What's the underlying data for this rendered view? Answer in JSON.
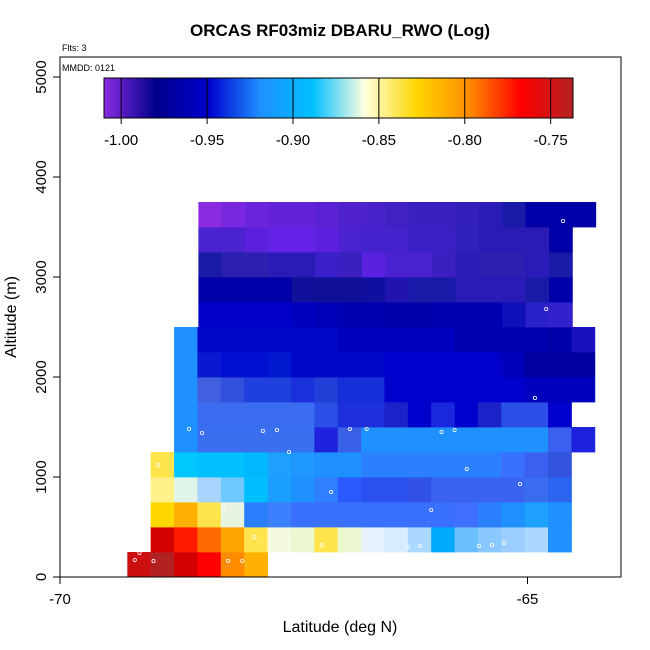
{
  "chart_data": {
    "type": "heatmap",
    "title": "ORCAS RF03miz DBARU_RWO (Log)",
    "flights_label": "Flts: 3",
    "date_label": "MMDD: 0121",
    "xlabel": "Latitude (deg N)",
    "ylabel": "Altitude (m)",
    "xlim": [
      -70,
      -64
    ],
    "ylim": [
      0,
      5200
    ],
    "x_ticks": [
      {
        "value": -70,
        "label": "-70"
      },
      {
        "value": -65,
        "label": "-65"
      }
    ],
    "y_ticks": [
      {
        "value": 0,
        "label": "0"
      },
      {
        "value": 1000,
        "label": "1000"
      },
      {
        "value": 2000,
        "label": "2000"
      },
      {
        "value": 3000,
        "label": "3000"
      },
      {
        "value": 4000,
        "label": "4000"
      },
      {
        "value": 5000,
        "label": "5000"
      }
    ],
    "colorbar": {
      "min": -1.01,
      "max": -0.737,
      "stops": [
        "#8a2be2",
        "#00008b",
        "#0000cd",
        "#1e90ff",
        "#00bfff",
        "#ffffe0",
        "#ffd700",
        "#ff8c00",
        "#ff0000",
        "#b22222"
      ],
      "ticks": [
        {
          "value": -1.0,
          "label": "-1.00"
        },
        {
          "value": -0.95,
          "label": "-0.95"
        },
        {
          "value": -0.9,
          "label": "-0.90"
        },
        {
          "value": -0.85,
          "label": "-0.85"
        },
        {
          "value": -0.8,
          "label": "-0.80"
        },
        {
          "value": -0.75,
          "label": "-0.75"
        }
      ]
    },
    "cell_width_deg": 0.25,
    "cell_height_m": 250,
    "rows": [
      {
        "alt": 0,
        "lat0": -69.28,
        "colors": [
          "#cc1010",
          "#b22222",
          "#d40000",
          "#ff0000",
          "#ff8c00",
          "#ffb000"
        ]
      },
      {
        "alt": 250,
        "lat0": -69.03,
        "colors": [
          "#d40000",
          "#ff1a00",
          "#ff6a00",
          "#ffa500",
          "#ffe44d",
          "#f4fae0",
          "#ecf8d0",
          "#ffe44d",
          "#ecf8d0",
          "#e6f2ff",
          "#d6ecff",
          "#aad8ff",
          "#00aaff",
          "#6cbfff",
          "#8ac8ff",
          "#9ccfff",
          "#aad8ff",
          "#1e90ff"
        ]
      },
      {
        "alt": 500,
        "lat0": -69.03,
        "colors": [
          "#ffd700",
          "#ffb000",
          "#ffe44d",
          "#e8f4e0",
          "#2a7fff",
          "#3a80ff",
          "#3a70ff",
          "#3a70ff",
          "#3a70ff",
          "#3a70ff",
          "#3a70ff",
          "#3a70ff",
          "#3a70ff",
          "#4070ff",
          "#2a80ff",
          "#1e90ff",
          "#1ea0ff",
          "#1e90ff"
        ]
      },
      {
        "alt": 750,
        "lat0": -69.03,
        "colors": [
          "#fff08a",
          "#e0f4e8",
          "#aad4ff",
          "#6fc8ff",
          "#00bfff",
          "#1a9fff",
          "#1e90ff",
          "#2f7fff",
          "#2a5aff",
          "#2a50f0",
          "#2a50f0",
          "#3050e8",
          "#3a64f0",
          "#3a64f0",
          "#3a64f0",
          "#3a64f0",
          "#3a6cf0",
          "#2a64f0"
        ]
      },
      {
        "alt": 1000,
        "lat0": -69.03,
        "colors": [
          "#ffe44d",
          "#00c8ff",
          "#00c0ff",
          "#00c0ff",
          "#00b8ff",
          "#1ea0ff",
          "#1e98ff",
          "#1e90ff",
          "#1e90ff",
          "#2a80ff",
          "#2a80ff",
          "#2a80ff",
          "#2a80ff",
          "#2a80ff",
          "#2a80ff",
          "#3a70ff",
          "#3a60f0",
          "#3355dd"
        ]
      },
      {
        "alt": 1250,
        "lat0": -68.78,
        "colors": [
          "#1e90ff",
          "#3a70f0",
          "#3a70f0",
          "#3a70f0",
          "#3a70f0",
          "#3a70f0",
          "#1e22dd",
          "#3a60e8",
          "#1e90ff",
          "#1e90ff",
          "#1e90ff",
          "#1e90ff",
          "#1e90ff",
          "#1e90ff",
          "#1e90ff",
          "#1e90ff",
          "#3a60f0",
          "#1e22dd"
        ]
      },
      {
        "alt": 1500,
        "lat0": -68.78,
        "colors": [
          "#1e90ff",
          "#3a6cf0",
          "#3a6cf0",
          "#3a6cf0",
          "#3a6cf0",
          "#3a6cf0",
          "#2a50e8",
          "#1e30dd",
          "#1e30dd",
          "#1a22c8",
          "#0000cd",
          "#1a28dd",
          "#0000cd",
          "#1a22c8",
          "#2a50e8",
          "#2a50e8",
          "#0000cd"
        ]
      },
      {
        "alt": 1750,
        "lat0": -68.78,
        "colors": [
          "#1e90ff",
          "#4060e0",
          "#3050dd",
          "#2040dd",
          "#2040dd",
          "#1a30dd",
          "#2040d8",
          "#1530d8",
          "#1530d8",
          "#0000cd",
          "#0000cd",
          "#0000cd",
          "#0000cd",
          "#0000cd",
          "#0000cd",
          "#0000bd",
          "#0000bd",
          "#0000bd"
        ]
      },
      {
        "alt": 2000,
        "lat0": -68.78,
        "colors": [
          "#1e90ff",
          "#0a18d0",
          "#0010d0",
          "#0010d0",
          "#0018d0",
          "#0008c8",
          "#0008c8",
          "#0008c8",
          "#0008c8",
          "#0000cd",
          "#0000cd",
          "#0000cd",
          "#0000cd",
          "#0000cd",
          "#0000bb",
          "#0000a0",
          "#0000a0",
          "#0000a0"
        ]
      },
      {
        "alt": 2250,
        "lat0": -68.78,
        "colors": [
          "#1e90ff",
          "#0008c8",
          "#0008c8",
          "#0008c8",
          "#0008c8",
          "#0008c8",
          "#0008c8",
          "#0000c0",
          "#0000c0",
          "#0000c0",
          "#0000c0",
          "#0000c0",
          "#0000b0",
          "#0000b0",
          "#0000b0",
          "#0000b0",
          "#0000a8",
          "#1a10c0"
        ]
      },
      {
        "alt": 2500,
        "lat0": -68.52,
        "colors": [
          "#0000c8",
          "#0000c8",
          "#0000c8",
          "#0000c8",
          "#0000c0",
          "#0000b8",
          "#0000b0",
          "#0000b0",
          "#0000a8",
          "#0000a8",
          "#0000b0",
          "#0000b0",
          "#0000b0",
          "#1010b8",
          "#2a22c8",
          "#3322cc"
        ]
      },
      {
        "alt": 2750,
        "lat0": -68.52,
        "colors": [
          "#0000a8",
          "#0000a8",
          "#0000a8",
          "#0000a8",
          "#10109a",
          "#0f0f98",
          "#0f0f98",
          "#1010a0",
          "#2212b0",
          "#1a1aa8",
          "#1a1aa8",
          "#2a1ab8",
          "#2a1ab8",
          "#2a1ab8",
          "#1a1aa8",
          "#0000a8"
        ]
      },
      {
        "alt": 3000,
        "lat0": -68.52,
        "colors": [
          "#1a1aa8",
          "#2c20b0",
          "#2c20b0",
          "#2a1ab8",
          "#2a1ab8",
          "#3a20c8",
          "#3a20c0",
          "#5a22e0",
          "#4a22d0",
          "#4a22d0",
          "#3a20c0",
          "#2a1ab8",
          "#2c20b0",
          "#2c20b0",
          "#2a1ab8",
          "#1a1aa8"
        ]
      },
      {
        "alt": 3250,
        "lat0": -68.52,
        "colors": [
          "#4a22d0",
          "#4a22d0",
          "#5a20dc",
          "#6422e6",
          "#6422e6",
          "#5a20dc",
          "#4a22d0",
          "#4422cc",
          "#4422cc",
          "#3c20c4",
          "#3c20c4",
          "#3020bc",
          "#2c1ab4",
          "#2c1ab4",
          "#2c1ab4",
          "#0000a8"
        ]
      },
      {
        "alt": 3500,
        "lat0": -68.52,
        "colors": [
          "#8a2be2",
          "#7a28e0",
          "#6a24dc",
          "#6422d8",
          "#6422d8",
          "#5a22d4",
          "#5022cc",
          "#4a22cc",
          "#4022c4",
          "#3a20c0",
          "#3a20c0",
          "#3320bc",
          "#2a1ab8",
          "#1a1aa8",
          "#0000a8",
          "#0000a8",
          "#0000a8"
        ]
      }
    ],
    "points": [
      {
        "lat": -68.55,
        "alt": 3730
      },
      {
        "lat": -64.62,
        "alt": 3560
      },
      {
        "lat": -64.8,
        "alt": 2680
      },
      {
        "lat": -64.92,
        "alt": 1790
      },
      {
        "lat": -68.62,
        "alt": 1480
      },
      {
        "lat": -68.48,
        "alt": 1440
      },
      {
        "lat": -67.83,
        "alt": 1460
      },
      {
        "lat": -67.68,
        "alt": 1470
      },
      {
        "lat": -67.55,
        "alt": 1250
      },
      {
        "lat": -66.9,
        "alt": 1480
      },
      {
        "lat": -66.72,
        "alt": 1480
      },
      {
        "lat": -65.92,
        "alt": 1450
      },
      {
        "lat": -65.78,
        "alt": 1470
      },
      {
        "lat": -68.95,
        "alt": 1120
      },
      {
        "lat": -65.65,
        "alt": 1080
      },
      {
        "lat": -65.08,
        "alt": 930
      },
      {
        "lat": -67.1,
        "alt": 850
      },
      {
        "lat": -68.25,
        "alt": 680
      },
      {
        "lat": -66.03,
        "alt": 670
      },
      {
        "lat": -69.1,
        "alt": 400
      },
      {
        "lat": -69.2,
        "alt": 170
      },
      {
        "lat": -69.0,
        "alt": 160
      },
      {
        "lat": -69.15,
        "alt": 240
      },
      {
        "lat": -67.92,
        "alt": 400
      },
      {
        "lat": -67.55,
        "alt": 320
      },
      {
        "lat": -67.2,
        "alt": 320
      },
      {
        "lat": -66.28,
        "alt": 300
      },
      {
        "lat": -66.15,
        "alt": 310
      },
      {
        "lat": -65.52,
        "alt": 310
      },
      {
        "lat": -65.38,
        "alt": 320
      },
      {
        "lat": -65.25,
        "alt": 340
      },
      {
        "lat": -68.2,
        "alt": 160
      },
      {
        "lat": -68.05,
        "alt": 160
      }
    ]
  }
}
